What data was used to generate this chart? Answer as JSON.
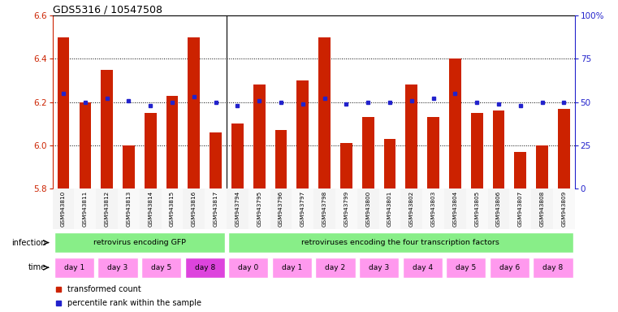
{
  "title": "GDS5316 / 10547508",
  "samples": [
    "GSM943810",
    "GSM943811",
    "GSM943812",
    "GSM943813",
    "GSM943814",
    "GSM943815",
    "GSM943816",
    "GSM943817",
    "GSM943794",
    "GSM943795",
    "GSM943796",
    "GSM943797",
    "GSM943798",
    "GSM943799",
    "GSM943800",
    "GSM943801",
    "GSM943802",
    "GSM943803",
    "GSM943804",
    "GSM943805",
    "GSM943806",
    "GSM943807",
    "GSM943808",
    "GSM943809"
  ],
  "red_values": [
    6.5,
    6.2,
    6.35,
    6.0,
    6.15,
    6.23,
    6.5,
    6.06,
    6.1,
    6.28,
    6.07,
    6.3,
    6.5,
    6.01,
    6.13,
    6.03,
    6.28,
    6.13,
    6.4,
    6.15,
    6.16,
    5.97,
    6.0,
    6.17
  ],
  "blue_values": [
    55,
    50,
    52,
    51,
    48,
    50,
    53,
    50,
    48,
    51,
    50,
    49,
    52,
    49,
    50,
    50,
    51,
    52,
    55,
    50,
    49,
    48,
    50,
    50
  ],
  "ylim_left": [
    5.8,
    6.6
  ],
  "ylim_right": [
    0,
    100
  ],
  "yticks_left": [
    5.8,
    6.0,
    6.2,
    6.4,
    6.6
  ],
  "yticks_right": [
    0,
    25,
    50,
    75,
    100
  ],
  "infection_groups": [
    {
      "label": "retrovirus encoding GFP",
      "start": 0,
      "end": 8
    },
    {
      "label": "retroviruses encoding the four transcription factors",
      "start": 8,
      "end": 24
    }
  ],
  "time_groups": [
    {
      "label": "day 1",
      "start": 0,
      "end": 2,
      "dark": false
    },
    {
      "label": "day 3",
      "start": 2,
      "end": 4,
      "dark": false
    },
    {
      "label": "day 5",
      "start": 4,
      "end": 6,
      "dark": false
    },
    {
      "label": "day 8",
      "start": 6,
      "end": 8,
      "dark": true
    },
    {
      "label": "day 0",
      "start": 8,
      "end": 10,
      "dark": false
    },
    {
      "label": "day 1",
      "start": 10,
      "end": 12,
      "dark": false
    },
    {
      "label": "day 2",
      "start": 12,
      "end": 14,
      "dark": false
    },
    {
      "label": "day 3",
      "start": 14,
      "end": 16,
      "dark": false
    },
    {
      "label": "day 4",
      "start": 16,
      "end": 18,
      "dark": false
    },
    {
      "label": "day 5",
      "start": 18,
      "end": 20,
      "dark": false
    },
    {
      "label": "day 6",
      "start": 20,
      "end": 22,
      "dark": false
    },
    {
      "label": "day 8",
      "start": 22,
      "end": 24,
      "dark": false
    }
  ],
  "bar_color": "#CC2200",
  "dot_color": "#2222CC",
  "baseline": 5.8,
  "infection_color": "#88EE88",
  "time_color_light": "#FF99EE",
  "time_color_dark": "#DD44DD",
  "n_samples": 24
}
